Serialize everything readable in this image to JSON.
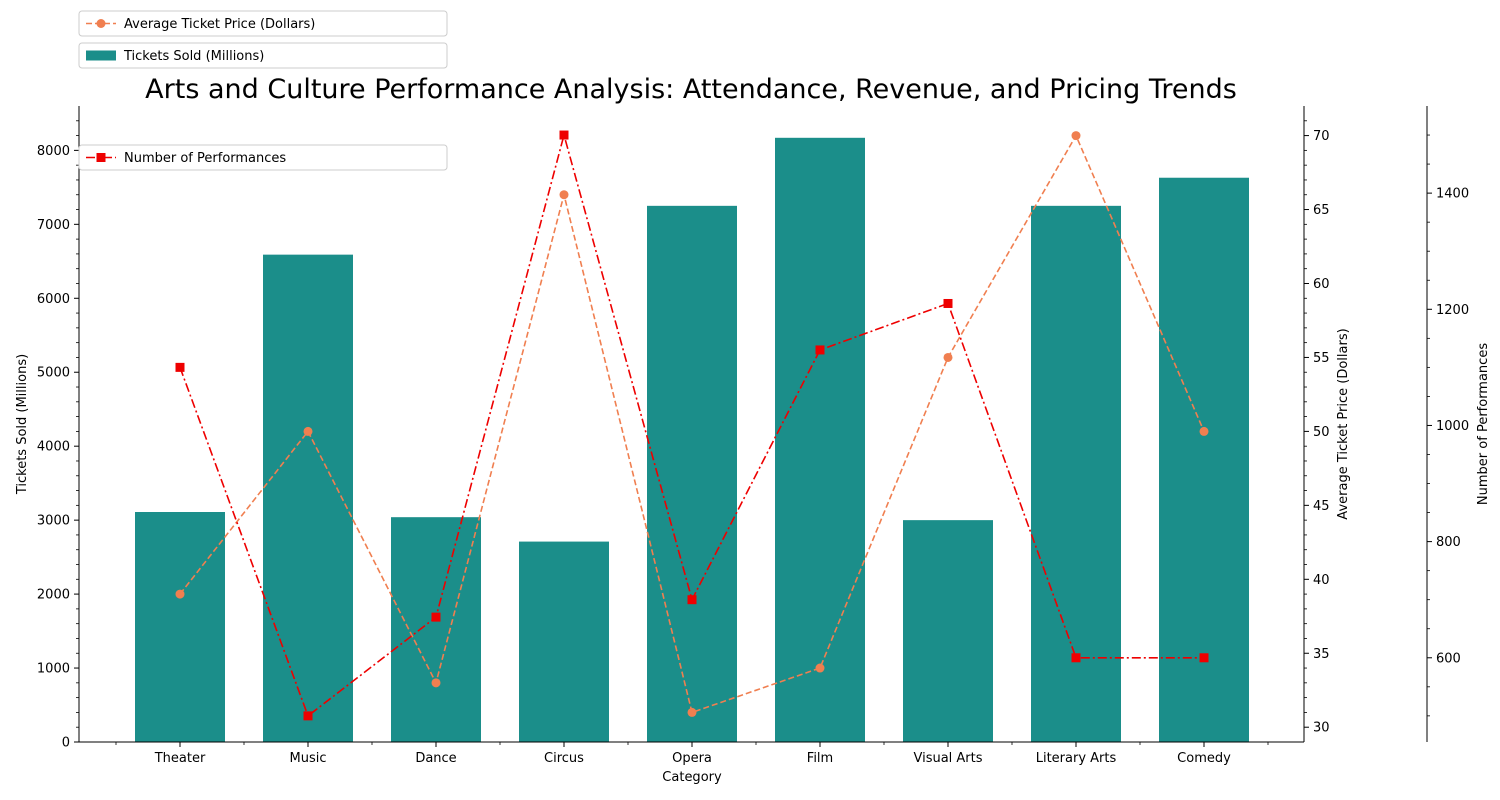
{
  "chart_data": {
    "type": "bar",
    "title": "Arts and Culture Performance Analysis: Attendance, Revenue, and Pricing Trends",
    "xlabel": "Category",
    "categories": [
      "Theater",
      "Music",
      "Dance",
      "Circus",
      "Opera",
      "Film",
      "Visual Arts",
      "Literary Arts",
      "Comedy"
    ],
    "y_left": {
      "label": "Tickets Sold (Millions)",
      "lim": [
        0,
        8600
      ],
      "ticks": [
        0,
        1000,
        2000,
        3000,
        4000,
        5000,
        6000,
        7000,
        8000
      ]
    },
    "y_right": {
      "label": "Average Ticket Price (Dollars)",
      "lim": [
        29,
        72
      ],
      "ticks": [
        30,
        35,
        40,
        45,
        50,
        55,
        60,
        65,
        70
      ]
    },
    "y_right2": {
      "label": "Number of Performances",
      "lim": [
        455,
        1550
      ],
      "ticks": [
        600,
        800,
        1000,
        1200,
        1400
      ]
    },
    "series": [
      {
        "name": "Tickets Sold (Millions)",
        "type": "bar",
        "axis": "left",
        "color": "#1b8e8a",
        "values": [
          3110,
          6590,
          3040,
          2710,
          7250,
          8170,
          3000,
          7250,
          7630
        ]
      },
      {
        "name": "Average Ticket Price (Dollars)",
        "type": "line",
        "axis": "right",
        "color": "#f07f50",
        "linestyle": "dashed",
        "marker": "circle",
        "values": [
          39,
          50,
          33,
          66,
          31,
          34,
          55,
          70,
          50
        ]
      },
      {
        "name": "Number of Performances",
        "type": "line",
        "axis": "right2",
        "color": "#ee0000",
        "linestyle": "dashdot",
        "marker": "square",
        "values": [
          1100,
          500,
          670,
          1500,
          700,
          1130,
          1210,
          600,
          600
        ]
      }
    ],
    "legend_placement": "top-left",
    "grid": false
  }
}
